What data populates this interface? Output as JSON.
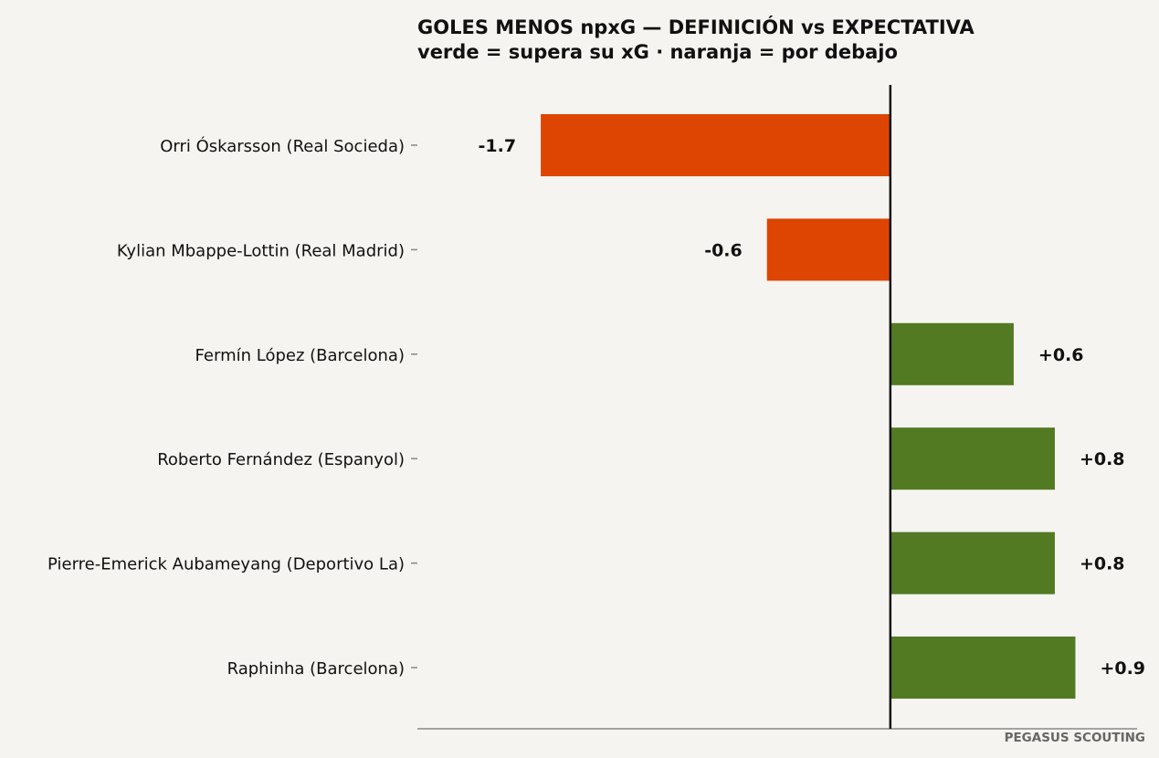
{
  "chart_data": {
    "type": "bar",
    "orientation": "horizontal",
    "title": "GOLES MENOS npxG — DEFINICIÓN vs EXPECTATIVA",
    "subtitle": "verde = supera su xG · naranja = por debajo",
    "categories": [
      "Orri Óskarsson (Real Socieda)",
      "Kylian Mbappe-Lottin (Real Madrid)",
      "Fermín López (Barcelona)",
      "Roberto Fernández (Espanyol)",
      "Pierre-Emerick Aubameyang (Deportivo La)",
      "Raphinha (Barcelona)"
    ],
    "values": [
      -1.7,
      -0.6,
      0.6,
      0.8,
      0.8,
      0.9
    ],
    "value_labels": [
      "-1.7",
      "-0.6",
      "+0.6",
      "+0.8",
      "+0.8",
      "+0.9"
    ],
    "xlim": [
      -2.3,
      1.2
    ],
    "grid": false,
    "colors": {
      "positive": "#517a22",
      "negative": "#de4503",
      "zero_line": "#111111",
      "axis": "#888888"
    },
    "credit": "PEGASUS SCOUTING"
  }
}
